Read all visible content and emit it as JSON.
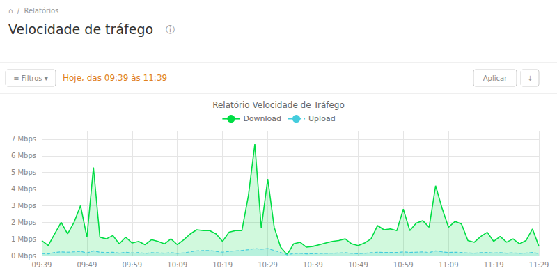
{
  "chart_data": {
    "type": "area",
    "title": "Relatório Velocidade de Tráfego",
    "annotations": [
      "⌂  /  Relatórios",
      "Velocidade de tráfego",
      "ⓘ",
      "≡ Filtros ▾",
      "Hoje, das 09:39 às 11:39",
      "Aplicar",
      "⤓"
    ],
    "categories": [
      "09:39",
      null,
      null,
      null,
      null,
      null,
      null,
      "09:49",
      null,
      null,
      null,
      null,
      null,
      null,
      "09:59",
      null,
      null,
      null,
      null,
      null,
      null,
      "10:09",
      null,
      null,
      null,
      null,
      null,
      null,
      "10:19",
      null,
      null,
      null,
      null,
      null,
      null,
      "10:29",
      null,
      null,
      null,
      null,
      null,
      null,
      "10:39",
      null,
      null,
      null,
      null,
      null,
      null,
      "10:49",
      null,
      null,
      null,
      null,
      null,
      null,
      "10:59",
      null,
      null,
      null,
      null,
      null,
      null,
      "11:09",
      null,
      null,
      null,
      null,
      null,
      null,
      "11:19",
      null,
      null,
      null,
      null,
      null,
      null,
      "11:29"
    ],
    "series": [
      {
        "name": "Download",
        "color": "#00dd44",
        "line_style": "solid",
        "values": [
          0.9,
          0.6,
          1.3,
          2.0,
          1.3,
          2.0,
          3.0,
          1.1,
          5.3,
          1.1,
          1.0,
          1.2,
          0.7,
          1.1,
          0.75,
          0.85,
          0.65,
          0.95,
          0.85,
          0.7,
          1.0,
          0.65,
          0.95,
          1.3,
          1.55,
          1.5,
          1.5,
          1.3,
          0.85,
          1.4,
          1.5,
          1.5,
          3.6,
          6.7,
          1.65,
          4.6,
          1.7,
          0.5,
          0.05,
          0.7,
          0.8,
          0.5,
          0.55,
          0.65,
          0.75,
          0.85,
          0.9,
          1.0,
          0.7,
          0.6,
          0.75,
          1.0,
          1.8,
          1.55,
          1.6,
          1.5,
          2.8,
          1.5,
          1.95,
          2.1,
          1.7,
          4.2,
          2.85,
          1.7,
          2.05,
          1.9,
          0.9,
          0.8,
          1.15,
          1.4,
          0.85,
          1.15,
          0.8,
          1.0,
          0.7,
          0.9,
          1.6,
          0.55
        ]
      },
      {
        "name": "Upload",
        "color": "#44ccdd",
        "line_style": "dashed",
        "values": [
          0.12,
          0.1,
          0.18,
          0.22,
          0.2,
          0.22,
          0.25,
          0.15,
          0.28,
          0.2,
          0.18,
          0.2,
          0.14,
          0.2,
          0.15,
          0.18,
          0.13,
          0.17,
          0.16,
          0.14,
          0.17,
          0.13,
          0.16,
          0.22,
          0.28,
          0.3,
          0.3,
          0.25,
          0.2,
          0.25,
          0.28,
          0.3,
          0.35,
          0.42,
          0.38,
          0.42,
          0.3,
          0.18,
          0.05,
          0.12,
          0.13,
          0.1,
          0.11,
          0.12,
          0.13,
          0.14,
          0.15,
          0.17,
          0.13,
          0.11,
          0.13,
          0.17,
          0.2,
          0.18,
          0.18,
          0.18,
          0.22,
          0.18,
          0.2,
          0.22,
          0.18,
          0.28,
          0.22,
          0.18,
          0.2,
          0.18,
          0.15,
          0.14,
          0.17,
          0.18,
          0.15,
          0.17,
          0.14,
          0.16,
          0.13,
          0.15,
          0.18,
          0.12
        ]
      }
    ],
    "ylim": [
      0,
      7.5
    ],
    "yticks": [
      {
        "value": 0,
        "label": "0 Mbps"
      },
      {
        "value": 1,
        "label": "1 Mbps"
      },
      {
        "value": 2,
        "label": "2 Mbps"
      },
      {
        "value": 3,
        "label": "3 Mbps"
      },
      {
        "value": 4,
        "label": "4 Mbps"
      },
      {
        "value": 5,
        "label": "5 Mbps"
      },
      {
        "value": 6,
        "label": "6 Mbps"
      },
      {
        "value": 7,
        "label": "7 Mbps"
      }
    ],
    "grid": true,
    "legend": "top"
  }
}
